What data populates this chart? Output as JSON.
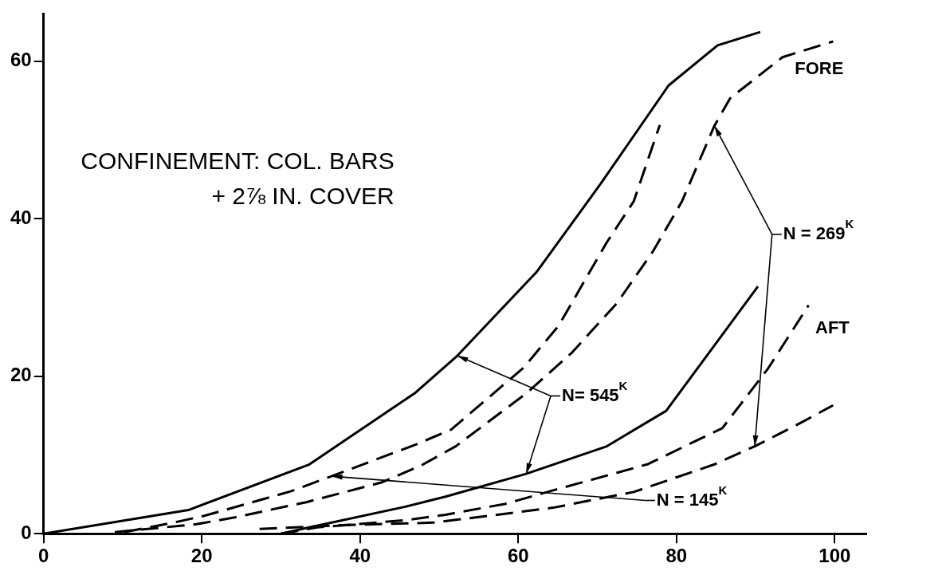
{
  "chart_data": {
    "type": "line",
    "title": "CONFINEMENT: COL. BARS\n+ 2⅞ IN. COVER",
    "xlim": [
      0,
      104
    ],
    "xticks": [
      0,
      20,
      40,
      60,
      80,
      100
    ],
    "ylim": [
      0,
      66
    ],
    "yticks": [
      0,
      20,
      40,
      60
    ],
    "grid": false,
    "legend": false,
    "marker": "none",
    "series": [
      {
        "color": "#000000",
        "line_style": "solid",
        "x": [
          0,
          18.3,
          33.6,
          47,
          52.3,
          62.3,
          70.4,
          79,
          85.2,
          90.6
        ],
        "values": [
          0,
          3.0,
          8.8,
          17.9,
          22.6,
          33.2,
          44.4,
          56.9,
          62,
          63.7
        ]
      },
      {
        "color": "#000000",
        "line_style": "dashed",
        "x": [
          10.2,
          16.4,
          20.4,
          31.3,
          36.4,
          47,
          51.5,
          60.7,
          65.1,
          71.2,
          74.6,
          77.9
        ],
        "values": [
          0.2,
          1.4,
          2.3,
          5.4,
          7.3,
          11.3,
          13.2,
          21.1,
          26.4,
          37,
          42.2,
          51.9
        ]
      },
      {
        "color": "#000000",
        "line_style": "dashed",
        "x": [
          9,
          19.3,
          24.3,
          33.2,
          42.7,
          47.8,
          52.1,
          61,
          66.8,
          72.5,
          77,
          80.7,
          84.8,
          86.8,
          93.4,
          99.8
        ],
        "values": [
          0.2,
          1.2,
          2.1,
          4.0,
          6.5,
          8.7,
          11.1,
          17.8,
          23,
          29.3,
          35.8,
          42.2,
          51.8,
          55.3,
          60.5,
          62.5
        ]
      },
      {
        "color": "#000000",
        "line_style": "solid",
        "x": [
          30,
          33.6,
          45.6,
          50.8,
          61,
          71.2,
          78.7,
          84.8,
          90.3
        ],
        "values": [
          0,
          0.8,
          3.4,
          4.7,
          7.6,
          11.1,
          15.6,
          23.9,
          31.4
        ]
      },
      {
        "color": "#000000",
        "line_style": "dashed",
        "x": [
          30,
          34.6,
          45.6,
          50.8,
          58.4,
          64.4,
          76.3,
          85.8,
          91.6,
          96.7
        ],
        "values": [
          0,
          0.8,
          1.7,
          2.4,
          3.8,
          5.5,
          8.8,
          13.4,
          21,
          29
        ]
      },
      {
        "color": "#000000",
        "line_style": "dashed",
        "x": [
          27.3,
          38.3,
          49.2,
          56.5,
          64.4,
          74.6,
          84.8,
          89.9,
          95,
          99.8
        ],
        "values": [
          0.6,
          1.1,
          1.4,
          2.3,
          3.3,
          5.3,
          8.8,
          11.1,
          13.7,
          16.3
        ]
      }
    ],
    "annotations": [
      "FORE",
      "AFT",
      {
        "text": "N = 269$^{K}$",
        "x": 84.8,
        "y": 51.8
      },
      {
        "text": "N= 545$^{K}$",
        "x": 52.3,
        "y": 22.6
      },
      {
        "text": "N = 145$^{K}$",
        "x": 36.4,
        "y": 7.3
      }
    ]
  }
}
